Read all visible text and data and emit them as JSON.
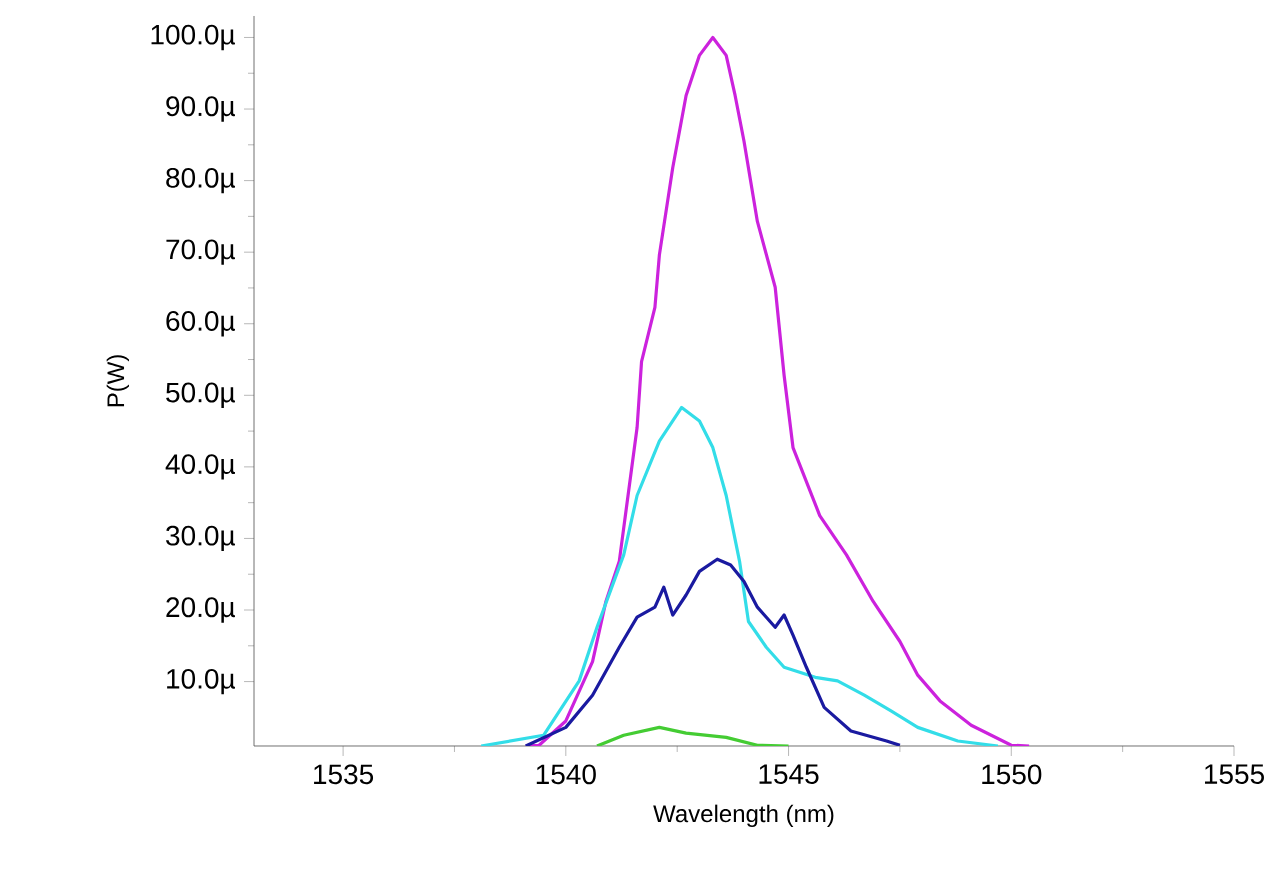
{
  "chart_data": {
    "type": "line",
    "xlabel": "Wavelength (nm)",
    "ylabel": "P(W)",
    "xlim": [
      1533,
      1555
    ],
    "xticks": [
      1535,
      1540,
      1545,
      1550,
      1555
    ],
    "ylim": [
      1,
      103
    ],
    "yticks": [
      {
        "value": 10,
        "label": "10.0µ"
      },
      {
        "value": 20,
        "label": "20.0µ"
      },
      {
        "value": 30,
        "label": "30.0µ"
      },
      {
        "value": 40,
        "label": "40.0µ"
      },
      {
        "value": 50,
        "label": "50.0µ"
      },
      {
        "value": 60,
        "label": "60.0µ"
      },
      {
        "value": 70,
        "label": "70.0µ"
      },
      {
        "value": 80,
        "label": "80.0µ"
      },
      {
        "value": 90,
        "label": "90.0µ"
      },
      {
        "value": 100,
        "label": "100.0µ"
      }
    ],
    "series": [
      {
        "color": "#cc22dd",
        "x": [
          1539.1,
          1539.4,
          1540.0,
          1540.6,
          1540.9,
          1541.2,
          1541.6,
          1541.7,
          1542.0,
          1542.1,
          1542.4,
          1542.7,
          1543.0,
          1543.3,
          1543.6,
          1543.8,
          1544.0,
          1544.3,
          1544.7,
          1544.9,
          1545.1,
          1545.7,
          1546.3,
          1546.9,
          1547.5,
          1547.9,
          1548.4,
          1549.1,
          1550.0,
          1550.4
        ],
        "values": [
          1.0,
          1.1,
          4.5,
          12.8,
          21.2,
          26.8,
          45.5,
          54.7,
          62.3,
          69.6,
          81.8,
          91.9,
          97.5,
          100.0,
          97.5,
          91.9,
          85.5,
          74.3,
          65.1,
          52.8,
          42.7,
          33.2,
          27.7,
          21.2,
          15.6,
          10.9,
          7.3,
          3.9,
          1.1,
          1.0
        ]
      },
      {
        "color": "#33dde8",
        "x": [
          1538.1,
          1539.5,
          1540.3,
          1540.7,
          1541.3,
          1541.6,
          1542.1,
          1542.6,
          1543.0,
          1543.3,
          1543.6,
          1543.9,
          1544.1,
          1544.5,
          1544.9,
          1545.6,
          1546.1,
          1546.7,
          1547.3,
          1547.9,
          1548.8,
          1549.7
        ],
        "values": [
          1.0,
          2.5,
          10.1,
          17.6,
          27.7,
          36.0,
          43.6,
          48.3,
          46.4,
          42.7,
          36.0,
          26.8,
          18.4,
          14.8,
          12.0,
          10.6,
          10.1,
          8.1,
          5.9,
          3.6,
          1.7,
          1.0
        ]
      },
      {
        "color": "#1a1aa0",
        "x": [
          1539.1,
          1540.0,
          1540.6,
          1541.2,
          1541.6,
          1542.0,
          1542.2,
          1542.4,
          1542.7,
          1543.0,
          1543.4,
          1543.7,
          1544.0,
          1544.3,
          1544.7,
          1544.9,
          1545.1,
          1545.4,
          1545.8,
          1546.4,
          1547.2,
          1547.5
        ],
        "values": [
          1.0,
          3.6,
          8.1,
          14.8,
          19.0,
          20.4,
          23.2,
          19.3,
          22.1,
          25.4,
          27.1,
          26.3,
          24.0,
          20.4,
          17.6,
          19.3,
          16.5,
          12.0,
          6.4,
          3.1,
          1.7,
          1.1
        ]
      },
      {
        "color": "#44cc33",
        "x": [
          1540.7,
          1541.3,
          1542.1,
          1542.7,
          1543.6,
          1544.3,
          1545.0
        ],
        "values": [
          1.0,
          2.5,
          3.6,
          2.8,
          2.2,
          1.1,
          1.0
        ]
      }
    ]
  }
}
